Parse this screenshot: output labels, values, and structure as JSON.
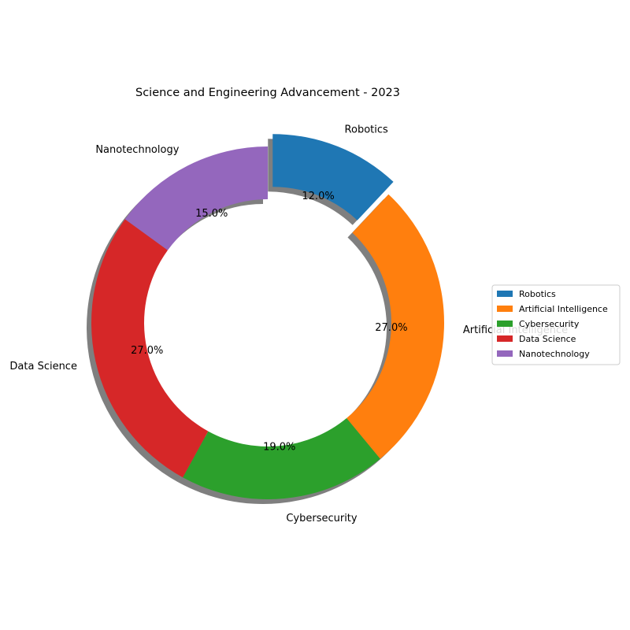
{
  "chart_data": {
    "type": "pie",
    "title": "Science and Engineering Advancement - 2023",
    "categories": [
      "Robotics",
      "Artificial Intelligence",
      "Cybersecurity",
      "Data Science",
      "Nanotechnology"
    ],
    "values": [
      12,
      27,
      19,
      27,
      15
    ],
    "value_labels": [
      "12.0%",
      "27.0%",
      "19.0%",
      "27.0%",
      "15.0%"
    ],
    "colors": [
      "#1f77b4",
      "#ff7f0e",
      "#2ca02c",
      "#d62728",
      "#9467bd"
    ],
    "donut": true,
    "exploded": [
      "Robotics"
    ],
    "shadow": true,
    "start_angle_deg": 90,
    "direction": "clockwise",
    "legend": {
      "placement": "center-right",
      "entries": [
        "Robotics",
        "Artificial Intelligence",
        "Cybersecurity",
        "Data Science",
        "Nanotechnology"
      ]
    }
  }
}
